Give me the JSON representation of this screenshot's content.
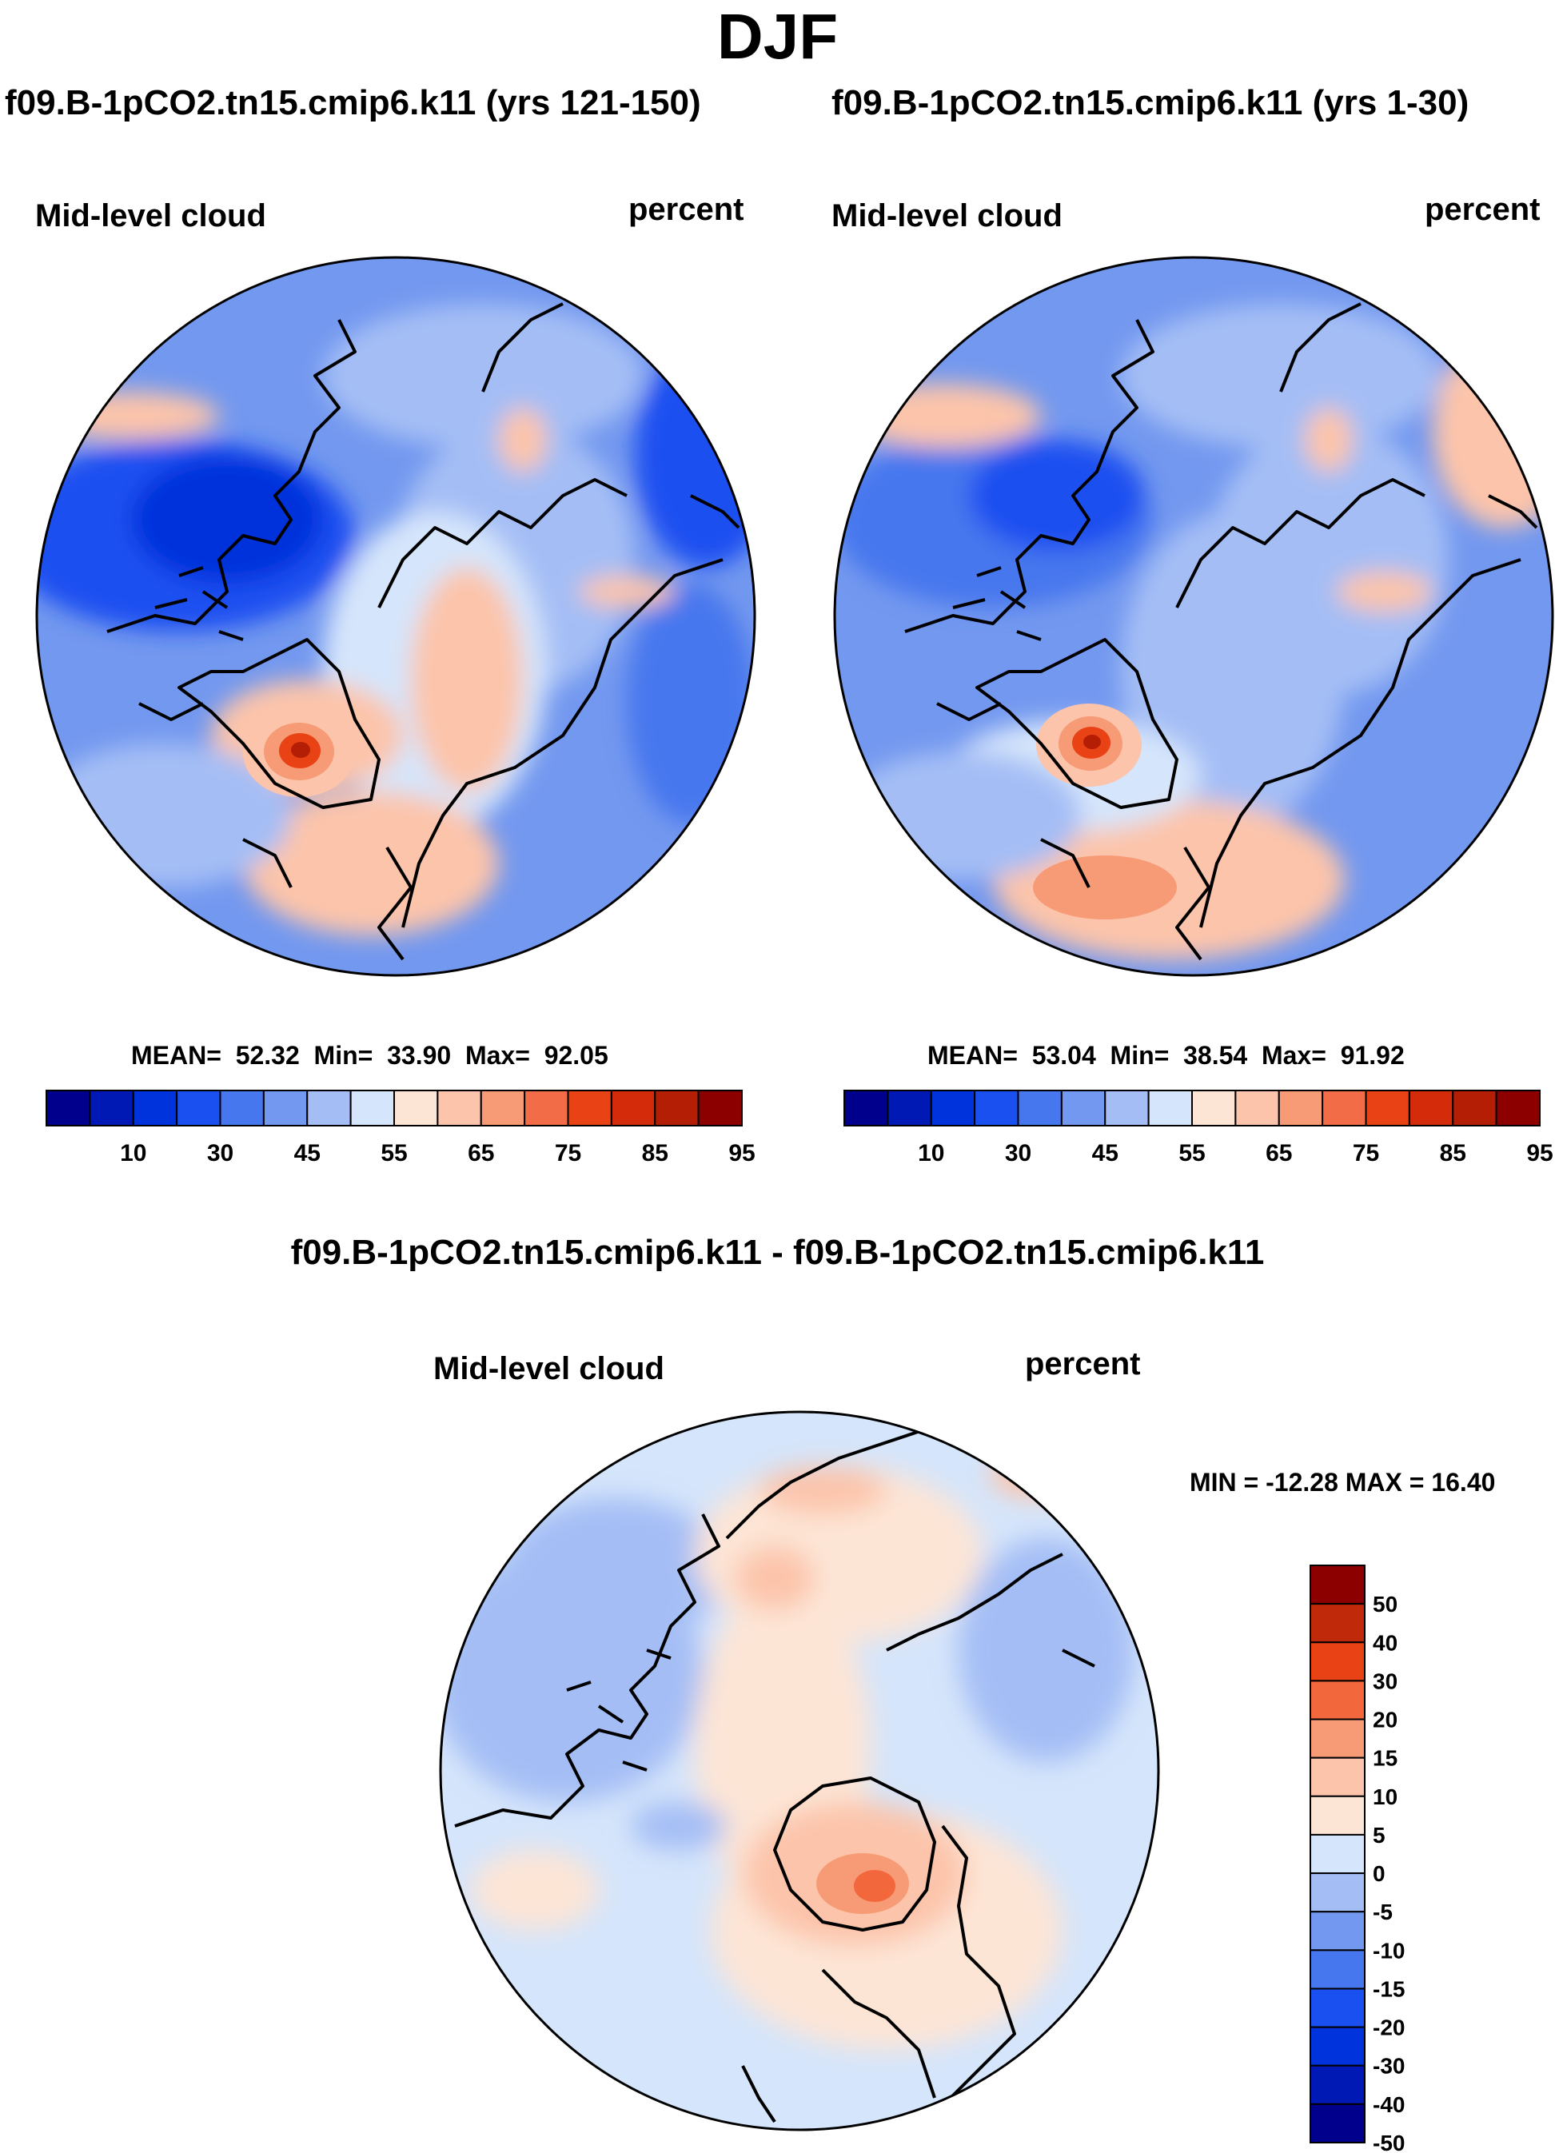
{
  "figure": {
    "title": "DJF",
    "units": "percent",
    "variable": "Mid-level cloud"
  },
  "panels": [
    {
      "case_title": "f09.B-1pCO2.tn15.cmip6.k11 (yrs 121-150)",
      "variable": "Mid-level cloud",
      "units": "percent",
      "stats": {
        "mean_label": "MEAN=",
        "mean": "52.32",
        "min_label": "Min=",
        "min": "33.90",
        "max_label": "Max=",
        "max": "92.05"
      }
    },
    {
      "case_title": "f09.B-1pCO2.tn15.cmip6.k11 (yrs 1-30)",
      "variable": "Mid-level cloud",
      "units": "percent",
      "stats": {
        "mean_label": "MEAN=",
        "mean": "53.04",
        "min_label": "Min=",
        "min": "38.54",
        "max_label": "Max=",
        "max": "91.92"
      }
    }
  ],
  "difference": {
    "title": "f09.B-1pCO2.tn15.cmip6.k11 - f09.B-1pCO2.tn15.cmip6.k11",
    "variable": "Mid-level cloud",
    "units": "percent",
    "minmax_text": "MIN = -12.28 MAX =  16.40"
  },
  "colorbar_main": {
    "colors": [
      "#00008c",
      "#0019b4",
      "#0033dc",
      "#1a4ff0",
      "#4677ee",
      "#7398ef",
      "#a4bef5",
      "#d5e5fb",
      "#fde5d6",
      "#fcc4aa",
      "#f79a76",
      "#f26c47",
      "#e94215",
      "#d42c0a",
      "#b31e05",
      "#8c0000"
    ],
    "labels": [
      "10",
      "30",
      "45",
      "55",
      "65",
      "75",
      "85",
      "95"
    ]
  },
  "colorbar_diff": {
    "colors_top_to_bottom": [
      "#8c0000",
      "#c1290b",
      "#e94215",
      "#f2673c",
      "#f79a76",
      "#fcc4aa",
      "#fde5d6",
      "#d5e5fb",
      "#a4bef5",
      "#7398ef",
      "#4677ee",
      "#1a4ff0",
      "#0033dc",
      "#0019b4",
      "#00008c"
    ],
    "labels": [
      "50",
      "40",
      "30",
      "20",
      "15",
      "10",
      "5",
      "0",
      "-5",
      "-10",
      "-15",
      "-20",
      "-30",
      "-40",
      "-50"
    ]
  }
}
